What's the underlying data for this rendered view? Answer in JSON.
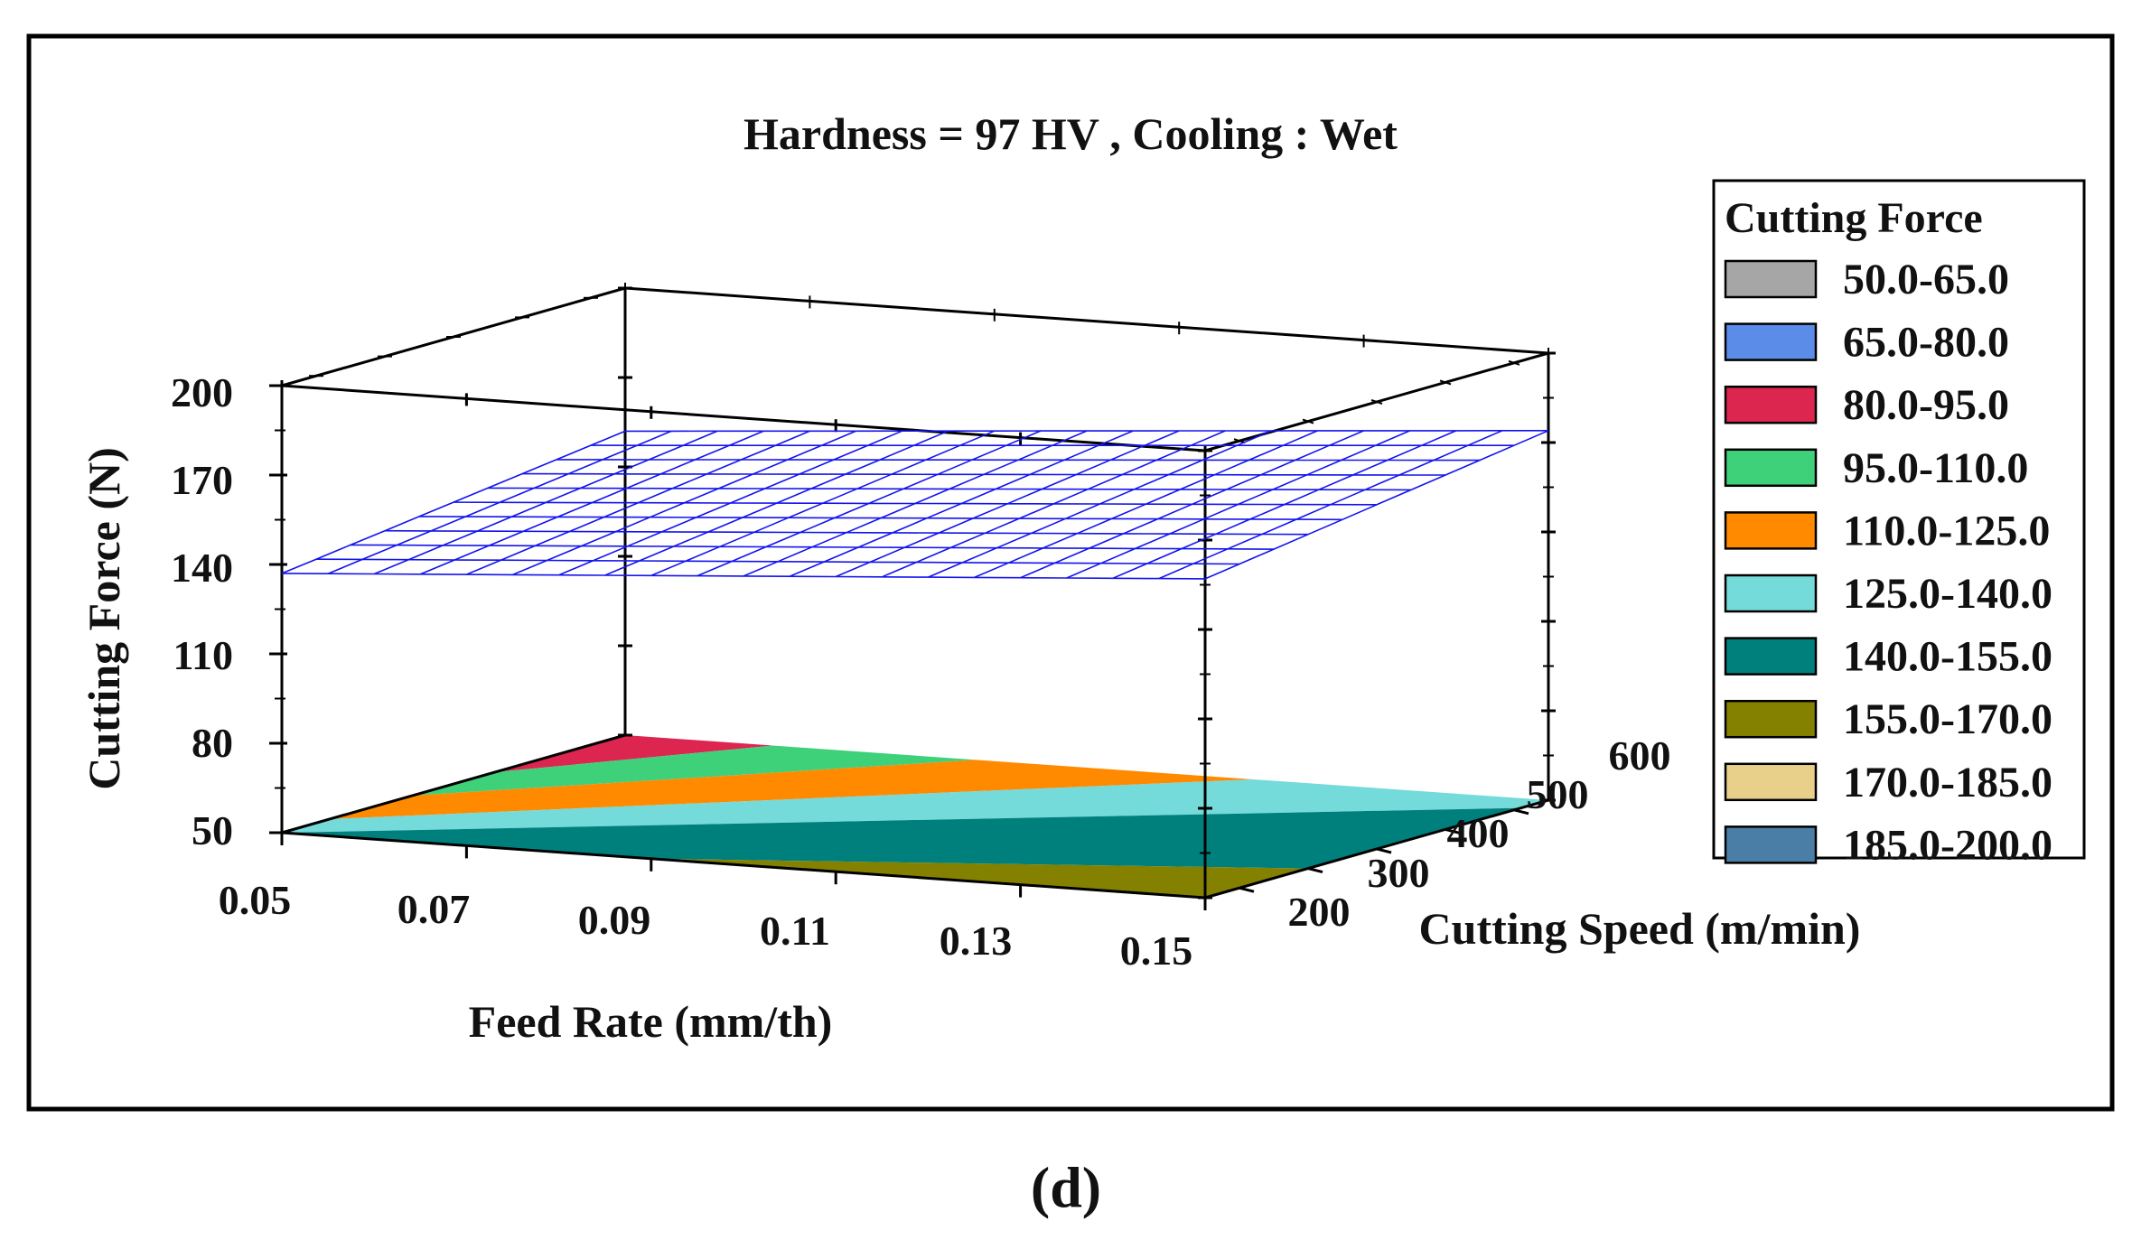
{
  "chart_data": {
    "type": "surface3d",
    "title": "Hardness = 97 HV , Cooling : Wet",
    "xlabel": "Feed Rate (mm/th)",
    "ylabel": "Cutting Speed (m/min)",
    "zlabel": "Cutting Force (N)",
    "x_ticks": [
      "0.05",
      "0.07",
      "0.09",
      "0.11",
      "0.13",
      "0.15"
    ],
    "y_ticks": [
      "200",
      "300",
      "400",
      "500",
      "600"
    ],
    "z_ticks": [
      "50",
      "80",
      "110",
      "140",
      "170",
      "200"
    ],
    "xlim": [
      0.05,
      0.15
    ],
    "ylim": [
      150,
      650
    ],
    "zlim": [
      50,
      200
    ],
    "surface": {
      "name": "Cutting Force",
      "x": [
        0.05,
        0.15
      ],
      "y": [
        150,
        650
      ],
      "z_corners": {
        "x0.05_y150": 137,
        "x0.15_y150": 157,
        "x0.05_y650": 152,
        "x0.15_y650": 174
      }
    },
    "legend": {
      "title": "Cutting Force",
      "placement": "right",
      "entries": [
        {
          "label": "50.0-65.0",
          "color": "#a6a6a6"
        },
        {
          "label": "65.0-80.0",
          "color": "#5b8ce8"
        },
        {
          "label": "80.0-95.0",
          "color": "#dc2650"
        },
        {
          "label": "95.0-110.0",
          "color": "#3fd07a"
        },
        {
          "label": "110.0-125.0",
          "color": "#ff8a00"
        },
        {
          "label": "125.0-140.0",
          "color": "#74dada"
        },
        {
          "label": "140.0-155.0",
          "color": "#00807d"
        },
        {
          "label": "155.0-170.0",
          "color": "#848000"
        },
        {
          "label": "170.0-185.0",
          "color": "#e8d08a"
        },
        {
          "label": "185.0-200.0",
          "color": "#4a7ea6"
        }
      ]
    },
    "contour_bands": [
      {
        "range": "80.0-95.0",
        "color": "#dc2650"
      },
      {
        "range": "95.0-110.0",
        "color": "#3fd07a"
      },
      {
        "range": "110.0-125.0",
        "color": "#ff8a00"
      },
      {
        "range": "125.0-140.0",
        "color": "#74dada"
      },
      {
        "range": "140.0-155.0",
        "color": "#00807d"
      },
      {
        "range": "155.0-170.0",
        "color": "#848000"
      }
    ],
    "mesh_color": "#1414ee"
  },
  "caption": "(d)"
}
